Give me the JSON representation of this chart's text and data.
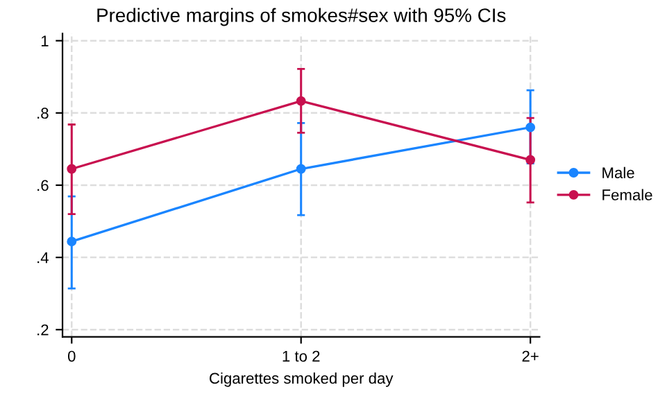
{
  "chart_data": {
    "type": "line",
    "title": "Predictive margins of smokes#sex with 95% CIs",
    "xlabel": "Cigarettes smoked per day",
    "categories": [
      "0",
      "1 to 2",
      "2+"
    ],
    "series": [
      {
        "name": "Male",
        "color": "#1a85ff",
        "values": [
          0.444,
          0.645,
          0.76
        ],
        "errors": [
          [
            0.314,
            0.569
          ],
          [
            0.517,
            0.772
          ],
          [
            0.66,
            0.863
          ]
        ]
      },
      {
        "name": "Female",
        "color": "#c8104f",
        "values": [
          0.645,
          0.833,
          0.67
        ],
        "errors": [
          [
            0.52,
            0.768
          ],
          [
            0.745,
            0.922
          ],
          [
            0.552,
            0.786
          ]
        ]
      }
    ],
    "ylim": [
      0.18,
      1.02
    ],
    "yticks": [
      {
        "value": 0.2,
        "label": ".2"
      },
      {
        "value": 0.4,
        "label": ".4"
      },
      {
        "value": 0.6,
        "label": ".6"
      },
      {
        "value": 0.8,
        "label": ".8"
      },
      {
        "value": 1,
        "label": "1"
      }
    ],
    "grid": true,
    "legend": "right",
    "marker": "circle",
    "line_style": "solid"
  }
}
